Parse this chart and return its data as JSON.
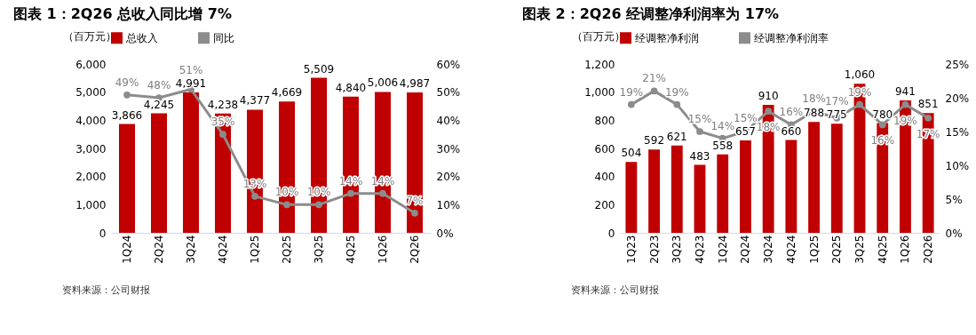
{
  "chart_data": [
    {
      "type": "bar",
      "title": "图表 1：2Q26 总收入同比增 7%",
      "ylabel": "（百万元）",
      "categories": [
        "1Q24",
        "2Q24",
        "3Q24",
        "4Q24",
        "1Q25",
        "2Q25",
        "3Q25",
        "4Q25",
        "1Q26",
        "2Q26"
      ],
      "series": [
        {
          "name": "总收入",
          "color": "#c00000",
          "values": [
            3866,
            4245,
            4991,
            4238,
            4377,
            4669,
            5509,
            4840,
            5006,
            4987
          ],
          "value_labels": [
            "3,866",
            "4,245",
            "4,991",
            "4,238",
            "4,377",
            "4,669",
            "5,509",
            "4,840",
            "5,006",
            "4,987"
          ]
        },
        {
          "name": "同比",
          "type": "line",
          "axis": "y2",
          "color": "#8c8c8c",
          "values": [
            49,
            48,
            51,
            35,
            13,
            10,
            10,
            14,
            14,
            7
          ],
          "value_labels": [
            "49%",
            "48%",
            "51%",
            "35%",
            "13%",
            "10%",
            "10%",
            "14%",
            "14%",
            "7%"
          ]
        }
      ],
      "ylim": [
        0,
        6000
      ],
      "yticks": [
        {
          "value": 0,
          "label": "0"
        },
        {
          "value": 1000,
          "label": "1,000"
        },
        {
          "value": 2000,
          "label": "2,000"
        },
        {
          "value": 3000,
          "label": "3,000"
        },
        {
          "value": 4000,
          "label": "4,000"
        },
        {
          "value": 5000,
          "label": "5,000"
        },
        {
          "value": 6000,
          "label": "6,000"
        }
      ],
      "y2lim": [
        0,
        60
      ],
      "y2ticks": [
        {
          "value": 0,
          "label": "0%"
        },
        {
          "value": 10,
          "label": "10%"
        },
        {
          "value": 20,
          "label": "20%"
        },
        {
          "value": 30,
          "label": "30%"
        },
        {
          "value": 40,
          "label": "40%"
        },
        {
          "value": 50,
          "label": "50%"
        },
        {
          "value": 60,
          "label": "60%"
        }
      ],
      "legend": "top",
      "marker": "circle",
      "line_style": "solid",
      "annotations": [
        "资料来源：公司财报"
      ]
    },
    {
      "type": "bar",
      "title": "图表 2：2Q26 经调整净利润率为 17%",
      "ylabel": "（百万元）",
      "categories": [
        "1Q23",
        "2Q23",
        "3Q23",
        "4Q23",
        "1Q24",
        "2Q24",
        "3Q24",
        "4Q24",
        "1Q25",
        "2Q25",
        "3Q25",
        "4Q25",
        "1Q26",
        "2Q26"
      ],
      "series": [
        {
          "name": "经调整净利润",
          "color": "#c00000",
          "values": [
            504,
            592,
            621,
            483,
            558,
            657,
            910,
            660,
            788,
            775,
            1060,
            780,
            941,
            851
          ],
          "value_labels": [
            "504",
            "592",
            "621",
            "483",
            "558",
            "657",
            "910",
            "660",
            "788",
            "775",
            "1,060",
            "780",
            "941",
            "851"
          ]
        },
        {
          "name": "经调整净利润率",
          "type": "line",
          "axis": "y2",
          "color": "#8c8c8c",
          "values": [
            19,
            21,
            19,
            15,
            14,
            15,
            18,
            16,
            18,
            17,
            19,
            16,
            19,
            17
          ],
          "value_labels": [
            "19%",
            "21%",
            "19%",
            "15%",
            "14%",
            "15%",
            "18%",
            "16%",
            "18%",
            "17%",
            "19%",
            "16%",
            "19%",
            "17%"
          ]
        }
      ],
      "ylim": [
        0,
        1200
      ],
      "yticks": [
        {
          "value": 0,
          "label": "0"
        },
        {
          "value": 200,
          "label": "200"
        },
        {
          "value": 400,
          "label": "400"
        },
        {
          "value": 600,
          "label": "600"
        },
        {
          "value": 800,
          "label": "800"
        },
        {
          "value": 1000,
          "label": "1,000"
        },
        {
          "value": 1200,
          "label": "1,200"
        }
      ],
      "y2lim": [
        0,
        25
      ],
      "y2ticks": [
        {
          "value": 0,
          "label": "0%"
        },
        {
          "value": 5,
          "label": "5%"
        },
        {
          "value": 10,
          "label": "10%"
        },
        {
          "value": 15,
          "label": "15%"
        },
        {
          "value": 20,
          "label": "20%"
        },
        {
          "value": 25,
          "label": "25%"
        }
      ],
      "legend": "top",
      "marker": "circle",
      "line_style": "solid",
      "annotations": [
        "资料来源：公司财报"
      ]
    }
  ]
}
